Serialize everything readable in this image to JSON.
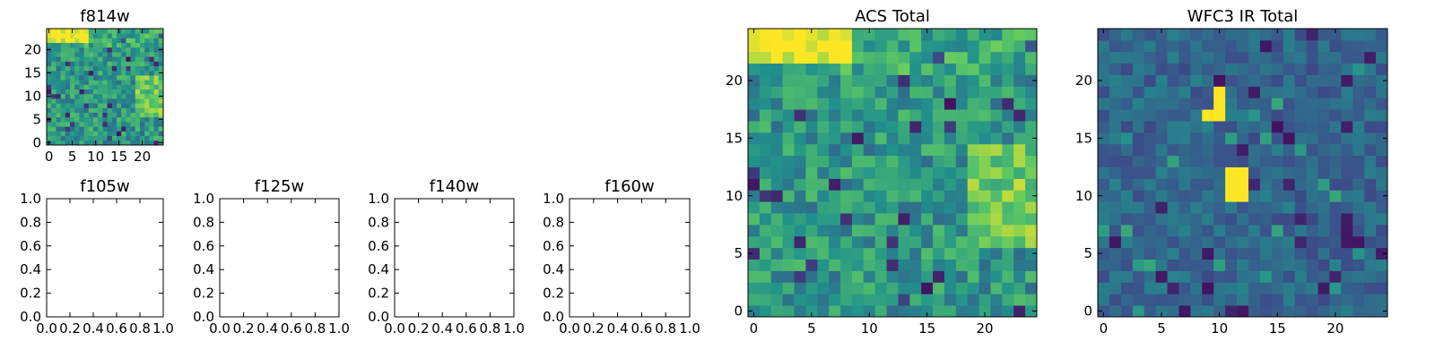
{
  "colormap": {
    "name": "viridis",
    "stops": [
      "#440154",
      "#3b528b",
      "#21918c",
      "#5ec962",
      "#fde725"
    ]
  },
  "chart_data": [
    {
      "type": "heatmap",
      "title": "f814w",
      "grid_size": 25,
      "xlim": [
        -0.5,
        24.5
      ],
      "ylim": [
        -0.5,
        24.5
      ],
      "xticks": [
        0,
        5,
        10,
        15,
        20
      ],
      "yticks": [
        0,
        5,
        10,
        15,
        20
      ],
      "xticklabels": [
        "0",
        "5",
        "10",
        "15",
        "20"
      ],
      "yticklabels": [
        "0",
        "5",
        "10",
        "15",
        "20"
      ],
      "seed": 17,
      "values_note_hotspots": [
        [
          0,
          24,
          0.95
        ],
        [
          3,
          24,
          0.9
        ],
        [
          23,
          11,
          0.88
        ]
      ]
    },
    {
      "type": "empty",
      "title": "f105w",
      "xlim": [
        0,
        1
      ],
      "ylim": [
        0,
        1
      ],
      "xticklabels": [
        "0.0",
        "0.2",
        "0.4",
        "0.6",
        "0.8",
        "1.0"
      ],
      "yticklabels": [
        "0.0",
        "0.2",
        "0.4",
        "0.6",
        "0.8",
        "1.0"
      ]
    },
    {
      "type": "empty",
      "title": "f125w",
      "xlim": [
        0,
        1
      ],
      "ylim": [
        0,
        1
      ],
      "xticklabels": [
        "0.0",
        "0.2",
        "0.4",
        "0.6",
        "0.8",
        "1.0"
      ],
      "yticklabels": [
        "0.0",
        "0.2",
        "0.4",
        "0.6",
        "0.8",
        "1.0"
      ]
    },
    {
      "type": "empty",
      "title": "f140w",
      "xlim": [
        0,
        1
      ],
      "ylim": [
        0,
        1
      ],
      "xticklabels": [
        "0.0",
        "0.2",
        "0.4",
        "0.6",
        "0.8",
        "1.0"
      ],
      "yticklabels": [
        "0.0",
        "0.2",
        "0.4",
        "0.6",
        "0.8",
        "1.0"
      ]
    },
    {
      "type": "empty",
      "title": "f160w",
      "xlim": [
        0,
        1
      ],
      "ylim": [
        0,
        1
      ],
      "xticklabels": [
        "0.0",
        "0.2",
        "0.4",
        "0.6",
        "0.8",
        "1.0"
      ],
      "yticklabels": [
        "0.0",
        "0.2",
        "0.4",
        "0.6",
        "0.8",
        "1.0"
      ]
    },
    {
      "type": "heatmap",
      "title": "ACS Total",
      "grid_size": 25,
      "xlim": [
        -0.5,
        24.5
      ],
      "ylim": [
        -0.5,
        24.5
      ],
      "xticks": [
        0,
        5,
        10,
        15,
        20
      ],
      "yticks": [
        0,
        5,
        10,
        15,
        20
      ],
      "xticklabels": [
        "0",
        "5",
        "10",
        "15",
        "20"
      ],
      "yticklabels": [
        "0",
        "5",
        "10",
        "15",
        "20"
      ],
      "seed": 17,
      "values_note_hotspots": [
        [
          0,
          24,
          0.95
        ],
        [
          3,
          24,
          0.95
        ],
        [
          23,
          11,
          0.92
        ],
        [
          22,
          10,
          0.9
        ]
      ]
    },
    {
      "type": "heatmap",
      "title": "WFC3 IR Total",
      "grid_size": 25,
      "xlim": [
        -0.5,
        24.5
      ],
      "ylim": [
        -0.5,
        24.5
      ],
      "xticks": [
        0,
        5,
        10,
        15,
        20
      ],
      "yticks": [
        0,
        5,
        10,
        15,
        20
      ],
      "xticklabels": [
        "0",
        "5",
        "10",
        "15",
        "20"
      ],
      "yticklabels": [
        "0",
        "5",
        "10",
        "15",
        "20"
      ],
      "seed": 53,
      "values_note_hotspots": [
        [
          10,
          18,
          1.0
        ],
        [
          10,
          19,
          1.0
        ],
        [
          9,
          17,
          1.0
        ],
        [
          10,
          17,
          1.0
        ],
        [
          11,
          12,
          1.0
        ],
        [
          12,
          12,
          1.0
        ],
        [
          11,
          11,
          1.0
        ],
        [
          12,
          11,
          1.0
        ],
        [
          11,
          10,
          1.0
        ],
        [
          12,
          10,
          1.0
        ]
      ]
    }
  ]
}
